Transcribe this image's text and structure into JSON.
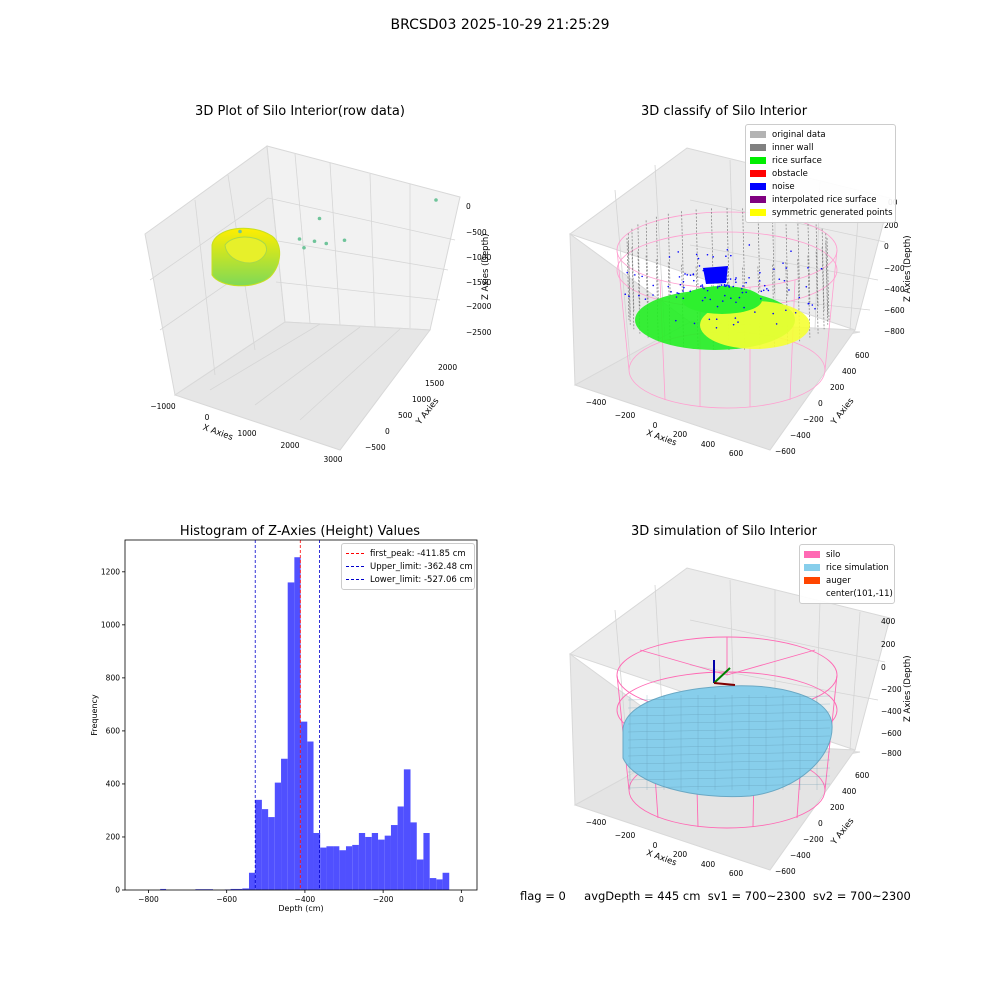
{
  "figure": {
    "title": "BRCSD03 2025-10-29 21:25:29",
    "status": {
      "flag": "flag = 0",
      "avg_depth": "avgDepth = 445 cm",
      "sv1": "sv1 = 700~2300",
      "sv2": "sv2 = 700~2300"
    }
  },
  "chart_data": [
    {
      "type": "scatter",
      "projection": "3d",
      "title": "3D Plot of Silo Interior(row data)",
      "xlabel": "X Axies",
      "ylabel": "Y Axies",
      "zlabel": "Z Axies (Depth)",
      "x_ticks": [
        "−1000",
        "0",
        "1000",
        "2000",
        "3000"
      ],
      "y_ticks": [
        "−500",
        "0",
        "500",
        "1000",
        "1500",
        "2000"
      ],
      "z_ticks": [
        "0",
        "−500",
        "−1000",
        "−1500",
        "−2000",
        "−2500"
      ],
      "colormap": [
        "#ffee00",
        "#7ed957"
      ],
      "cluster": "ring-shaped point cloud near x≈-700, z≈-1000",
      "outliers": [
        {
          "x": 1100,
          "y": 900,
          "z": -1300
        },
        {
          "x": 1300,
          "y": 1000,
          "z": -1250
        },
        {
          "x": 1450,
          "y": 1100,
          "z": -1200
        },
        {
          "x": 1200,
          "y": 800,
          "z": -1150
        },
        {
          "x": 1700,
          "y": 1200,
          "z": -1250
        },
        {
          "x": 1500,
          "y": 600,
          "z": -1700
        },
        {
          "x": 400,
          "y": 200,
          "z": -1500
        },
        {
          "x": 2900,
          "y": 2100,
          "z": -2450
        }
      ]
    },
    {
      "type": "scatter",
      "projection": "3d",
      "title": "3D classify of Silo Interior",
      "xlabel": "X Axies",
      "ylabel": "Y Axies",
      "zlabel": "Z Axies (Depth)",
      "x_ticks": [
        "−400",
        "−200",
        "0",
        "200",
        "400",
        "600"
      ],
      "y_ticks": [
        "−600",
        "−400",
        "−200",
        "0",
        "200",
        "400",
        "600"
      ],
      "z_ticks": [
        "200",
        "0",
        "−200",
        "−400",
        "−600",
        "−800"
      ],
      "z_tick_top_partial": "00",
      "legend_position": "top-right",
      "legend": [
        {
          "label": "original data",
          "color": "#b3b3b3"
        },
        {
          "label": "inner wall",
          "color": "#808080"
        },
        {
          "label": "rice surface",
          "color": "#00ee00"
        },
        {
          "label": "obstacle",
          "color": "#ff0000"
        },
        {
          "label": "noise",
          "color": "#0000ff"
        },
        {
          "label": "interpolated rice surface",
          "color": "#800080"
        },
        {
          "label": "symmetric generated points",
          "color": "#ffff00"
        }
      ],
      "cylinder_color": "#ff69b4"
    },
    {
      "type": "bar",
      "subtype": "histogram",
      "title": "Histogram of Z-Axies (Height) Values",
      "xlabel": "Depth (cm)",
      "ylabel": "Frequency",
      "xlim": [
        -860,
        40
      ],
      "ylim": [
        0,
        1320
      ],
      "x_ticks": [
        -800,
        -600,
        -400,
        -200,
        0
      ],
      "x_tick_labels": [
        "−800",
        "−600",
        "−400",
        "−200",
        "0"
      ],
      "y_ticks": [
        0,
        200,
        400,
        600,
        800,
        1000,
        1200
      ],
      "bar_color": "#5050ff",
      "bins": [
        {
          "x0": -770,
          "x1": -755,
          "count": 4
        },
        {
          "x0": -680,
          "x1": -635,
          "count": 3
        },
        {
          "x0": -605,
          "x1": -590,
          "count": 2
        },
        {
          "x0": -590,
          "x1": -560,
          "count": 4
        },
        {
          "x0": -560,
          "x1": -543,
          "count": 6
        },
        {
          "x0": -543,
          "x1": -527,
          "count": 65
        },
        {
          "x0": -527,
          "x1": -510,
          "count": 340
        },
        {
          "x0": -510,
          "x1": -494,
          "count": 305
        },
        {
          "x0": -494,
          "x1": -477,
          "count": 275
        },
        {
          "x0": -477,
          "x1": -461,
          "count": 405
        },
        {
          "x0": -461,
          "x1": -444,
          "count": 495
        },
        {
          "x0": -444,
          "x1": -427,
          "count": 1160
        },
        {
          "x0": -427,
          "x1": -411,
          "count": 1255
        },
        {
          "x0": -411,
          "x1": -394,
          "count": 635
        },
        {
          "x0": -394,
          "x1": -378,
          "count": 560
        },
        {
          "x0": -378,
          "x1": -361,
          "count": 215
        },
        {
          "x0": -361,
          "x1": -345,
          "count": 160
        },
        {
          "x0": -345,
          "x1": -328,
          "count": 165
        },
        {
          "x0": -328,
          "x1": -312,
          "count": 165
        },
        {
          "x0": -312,
          "x1": -295,
          "count": 150
        },
        {
          "x0": -295,
          "x1": -279,
          "count": 165
        },
        {
          "x0": -279,
          "x1": -262,
          "count": 170
        },
        {
          "x0": -262,
          "x1": -246,
          "count": 215
        },
        {
          "x0": -246,
          "x1": -229,
          "count": 200
        },
        {
          "x0": -229,
          "x1": -213,
          "count": 215
        },
        {
          "x0": -213,
          "x1": -196,
          "count": 190
        },
        {
          "x0": -196,
          "x1": -180,
          "count": 205
        },
        {
          "x0": -180,
          "x1": -163,
          "count": 245
        },
        {
          "x0": -163,
          "x1": -147,
          "count": 315
        },
        {
          "x0": -147,
          "x1": -130,
          "count": 455
        },
        {
          "x0": -130,
          "x1": -114,
          "count": 255
        },
        {
          "x0": -114,
          "x1": -97,
          "count": 115
        },
        {
          "x0": -97,
          "x1": -81,
          "count": 215
        },
        {
          "x0": -81,
          "x1": -64,
          "count": 45
        },
        {
          "x0": -64,
          "x1": -48,
          "count": 40
        },
        {
          "x0": -48,
          "x1": -31,
          "count": 65
        }
      ],
      "vlines": [
        {
          "label": "first_peak: -411.85 cm",
          "x": -411.85,
          "color": "#ff0000"
        },
        {
          "label": "Upper_limit: -362.48 cm",
          "x": -362.48,
          "color": "#0000cc"
        },
        {
          "label": "Lower_limit: -527.06 cm",
          "x": -527.06,
          "color": "#0000cc"
        }
      ],
      "legend_position": "top-right"
    },
    {
      "type": "scatter",
      "projection": "3d",
      "title": "3D simulation of Silo Interior",
      "xlabel": "X Axies",
      "ylabel": "Y Axies",
      "zlabel": "Z Axies (Depth)",
      "x_ticks": [
        "−400",
        "−200",
        "0",
        "200",
        "400",
        "600"
      ],
      "y_ticks": [
        "−600",
        "−400",
        "−200",
        "0",
        "200",
        "400",
        "600"
      ],
      "z_ticks": [
        "400",
        "200",
        "0",
        "−200",
        "−400",
        "−600",
        "−800"
      ],
      "legend_position": "top-right",
      "legend": [
        {
          "label": "silo",
          "color": "#ff69b4"
        },
        {
          "label": "rice simulation",
          "color": "#87ceeb"
        },
        {
          "label": "auger",
          "color": "#ff4500"
        },
        {
          "label": "center(101,-11)",
          "color": ""
        }
      ]
    }
  ]
}
